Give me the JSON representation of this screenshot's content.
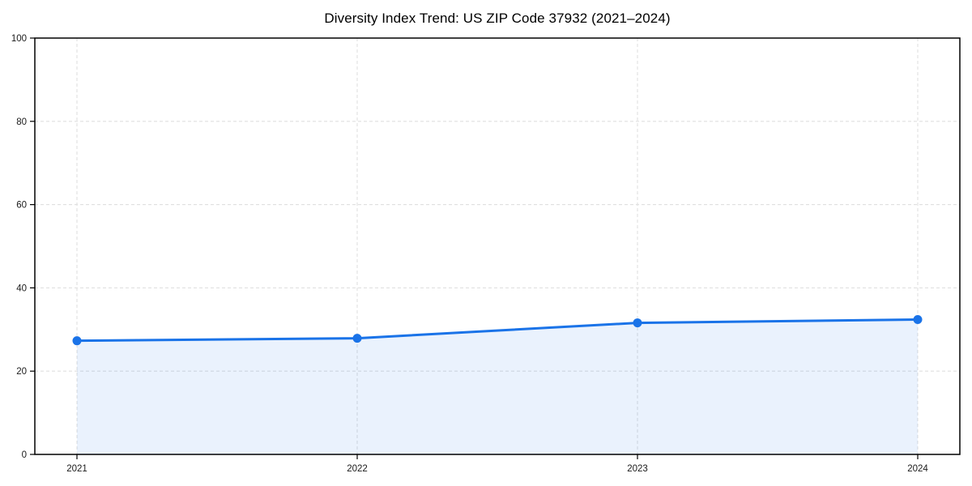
{
  "chart_data": {
    "type": "area",
    "title": "Diversity Index Trend: US ZIP Code 37932 (2021–2024)",
    "xlabel": "",
    "ylabel": "",
    "categories": [
      "2021",
      "2022",
      "2023",
      "2024"
    ],
    "series": [
      {
        "name": "Diversity Index",
        "values": [
          27.3,
          27.9,
          31.6,
          32.4
        ]
      }
    ],
    "ylim": [
      0,
      100
    ],
    "yticks": [
      0,
      20,
      40,
      60,
      80,
      100
    ],
    "grid": true,
    "grid_style": "dashed",
    "legend": false,
    "marker": "circle",
    "colors": {
      "line": "#1a73e8",
      "fill": "rgba(26,115,232,0.09)",
      "grid": "#e0e0e0",
      "axis": "#000000",
      "tick_text": "#1a1a1a",
      "background": "#ffffff"
    }
  }
}
